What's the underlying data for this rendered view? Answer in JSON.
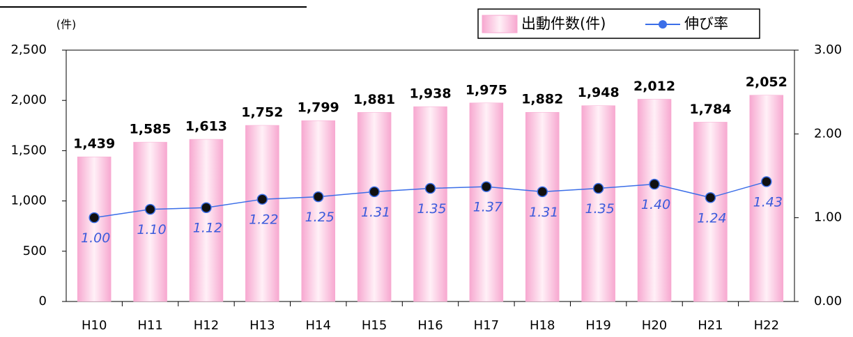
{
  "chart_data": {
    "type": "bar",
    "y_label": "(件)",
    "categories": [
      "H10",
      "H11",
      "H12",
      "H13",
      "H14",
      "H15",
      "H16",
      "H17",
      "H18",
      "H19",
      "H20",
      "H21",
      "H22"
    ],
    "series": [
      {
        "name": "出動件数(件)",
        "type": "bar",
        "color": "#f7a8d0",
        "values": [
          1439,
          1585,
          1613,
          1752,
          1799,
          1881,
          1938,
          1975,
          1882,
          1948,
          2012,
          1784,
          2052
        ],
        "value_labels": [
          "1,439",
          "1,585",
          "1,613",
          "1,752",
          "1,799",
          "1,881",
          "1,938",
          "1,975",
          "1,882",
          "1,948",
          "2,012",
          "1,784",
          "2,052"
        ]
      },
      {
        "name": "伸び率",
        "type": "line",
        "axis": "y2",
        "color": "#3b6ee8",
        "values": [
          1.0,
          1.1,
          1.12,
          1.22,
          1.25,
          1.31,
          1.35,
          1.37,
          1.31,
          1.35,
          1.4,
          1.24,
          1.43
        ],
        "value_labels": [
          "1.00",
          "1.10",
          "1.12",
          "1.22",
          "1.25",
          "1.31",
          "1.35",
          "1.37",
          "1.31",
          "1.35",
          "1.40",
          "1.24",
          "1.43"
        ]
      }
    ],
    "ylim": [
      0,
      2500
    ],
    "yticks": [
      0,
      {
        "value": 500,
        "label": "500"
      },
      {
        "value": 1000,
        "label": "1,000"
      },
      {
        "value": 1500,
        "label": "1,500"
      },
      {
        "value": 2000,
        "label": "2,000"
      },
      {
        "value": 2500,
        "label": "2,500"
      }
    ],
    "y2lim": [
      0,
      3
    ],
    "y2ticks": [
      {
        "value": 0,
        "label": "0.00"
      },
      {
        "value": 1,
        "label": "1.00"
      },
      {
        "value": 2,
        "label": "2.00"
      },
      {
        "value": 3,
        "label": "3.00"
      }
    ],
    "legend": "top-right",
    "grid": false
  }
}
